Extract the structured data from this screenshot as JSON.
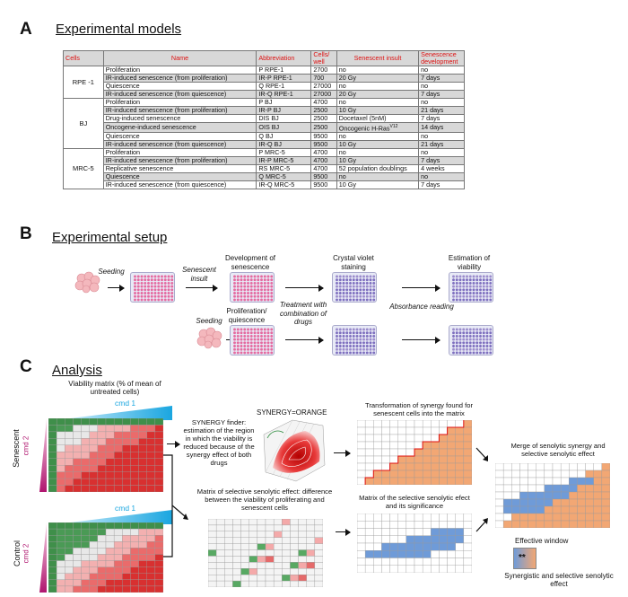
{
  "sectionA": {
    "letter": "A",
    "title": "Experimental models",
    "headers": [
      "Cells",
      "Name",
      "Abbreviation",
      "Cells/ well",
      "Senescent insult",
      "Senescence development"
    ],
    "groups": [
      {
        "cell": "RPE -1",
        "rows": [
          [
            "Proliferation",
            "P RPE-1",
            "2700",
            "no",
            "no"
          ],
          [
            "IR-induced senescence (from proliferation)",
            "IR-P RPE-1",
            "700",
            "20 Gy",
            "7 days"
          ],
          [
            "Quiescence",
            "Q RPE-1",
            "27000",
            "no",
            "no"
          ],
          [
            "IR-induced senescence (from quiescence)",
            "IR-Q RPE-1",
            "27000",
            "20 Gy",
            "7 days"
          ]
        ]
      },
      {
        "cell": "BJ",
        "rows": [
          [
            "Proliferation",
            "P BJ",
            "4700",
            "no",
            "no"
          ],
          [
            "IR-induced senescence (from proliferation)",
            "IR-P BJ",
            "2500",
            "10 Gy",
            "21 days"
          ],
          [
            "Drug-induced senescence",
            "DIS BJ",
            "2500",
            "Docetaxel (5nM)",
            "7 days"
          ],
          [
            "Oncogene-induced senescence",
            "OIS BJ",
            "2500",
            "Oncogenic H-Ras",
            "14 days"
          ],
          [
            "Quiescence",
            "Q BJ",
            "9500",
            "no",
            "no"
          ],
          [
            "IR-induced senescence (from quiescence)",
            "IR-Q BJ",
            "9500",
            "10 Gy",
            "21 days"
          ]
        ]
      },
      {
        "cell": "MRC-5",
        "rows": [
          [
            "Proliferation",
            "P MRC-5",
            "4700",
            "no",
            "no"
          ],
          [
            "IR-induced senescence (from proliferation)",
            "IR-P MRC-5",
            "4700",
            "10 Gy",
            "7 days"
          ],
          [
            "Replicative senescence",
            "RS MRC-5",
            "4700",
            "52 population doublings",
            "4 weeks"
          ],
          [
            "Quiescence",
            "Q MRC-5",
            "9500",
            "no",
            "no"
          ],
          [
            "IR-induced senescence (from quiescence)",
            "IR-Q MRC-5",
            "9500",
            "10 Gy",
            "7 days"
          ]
        ]
      }
    ],
    "ras_superscript": "V12"
  },
  "sectionB": {
    "letter": "B",
    "title": "Experimental setup",
    "seeding1": "Seeding",
    "senescent_insult": "Senescent insult",
    "dev_senescence": "Development of senescence",
    "crystal": "Crystal violet staining",
    "estimation": "Estimation of viability",
    "treatment": "Treatment with combination of drugs",
    "seeding2": "Seeding",
    "prolif": "Proliferation/ quiescence",
    "absorbance": "Absorbance reading"
  },
  "sectionC": {
    "letter": "C",
    "title": "Analysis",
    "viability_title": "Viability matrix (% of mean of untreated cells)",
    "cmd1": "cmd 1",
    "cmd1b": "cmd 1",
    "cmd2": "cmd 2",
    "cmd2b": "cmd 2",
    "senescent": "Senescent",
    "control": "Control",
    "synergy_finder": "SYNERGY finder: estimation of the region in which the viability is reduced because of the synergy effect of both drugs",
    "synergy_orange": "SYNERGY=ORANGE",
    "transformation": "Transformation of synergy found for senescent cells into the matrix",
    "selective_matrix": "Matrix of selective senolytic effect: difference between the viability of proliferating and senescent cells",
    "selective_sig": "Matrix of the selective senolytic efect and its significance",
    "merge": "Merge of senolytic synergy and selective senolytic effect",
    "effective": "Effective window",
    "stars": "**",
    "synergistic": "Synergistic and selective senolytic effect"
  },
  "colors": {
    "red": "#d11",
    "orange": "#f2a774",
    "blue": "#6f9bd8",
    "cyan": "#1aa6e0",
    "magenta": "#b0156f"
  }
}
